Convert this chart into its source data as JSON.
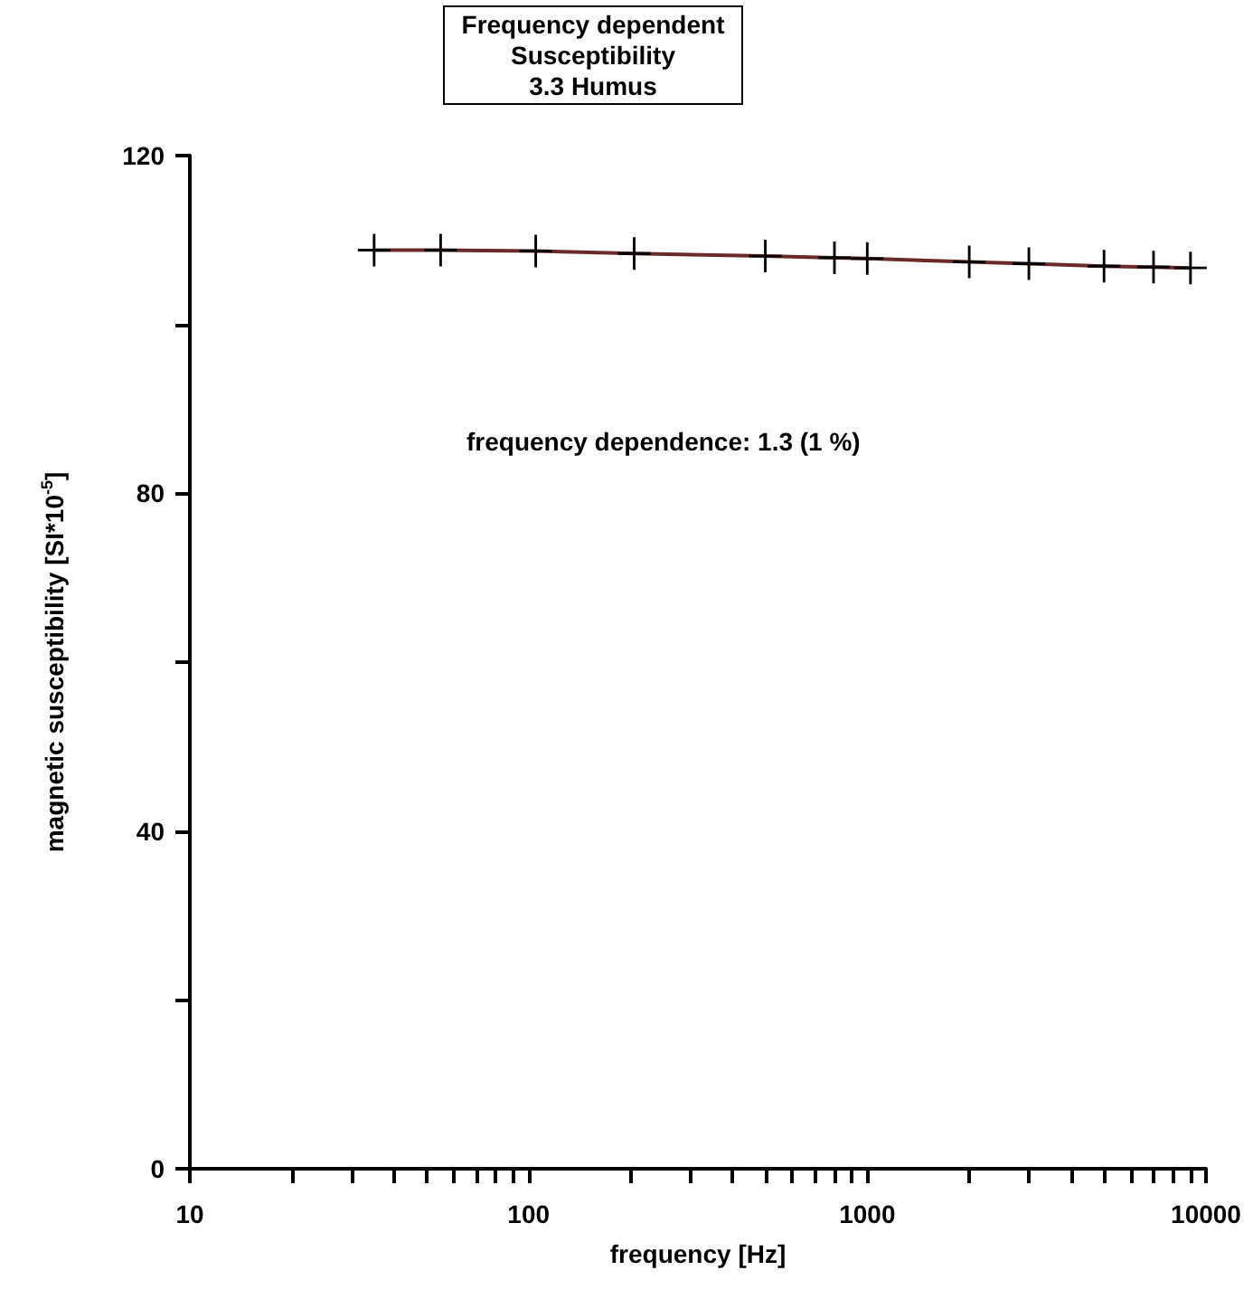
{
  "chart_data": {
    "type": "line",
    "title": "Frequency dependent\nSusceptibility\n3.3 Humus",
    "xlabel": "frequency [Hz]",
    "ylabel": "magnetic susceptibility [SI*10$^{-5}$]",
    "x": [
      35,
      55,
      105,
      205,
      500,
      800,
      1000,
      2000,
      3000,
      5000,
      7000,
      9000
    ],
    "series": [
      {
        "color": "#6b2a2a",
        "values": [
          108.8,
          108.8,
          108.7,
          108.4,
          108.1,
          107.9,
          107.8,
          107.4,
          107.2,
          106.9,
          106.8,
          106.7
        ]
      }
    ],
    "log": "x",
    "xlim": [
      10,
      10000
    ],
    "xticks": [
      10,
      {
        "value": 20,
        "label": null
      },
      {
        "value": 30,
        "label": null
      },
      {
        "value": 40,
        "label": null
      },
      {
        "value": 50,
        "label": null
      },
      {
        "value": 60,
        "label": null
      },
      {
        "value": 70,
        "label": null
      },
      {
        "value": 80,
        "label": null
      },
      {
        "value": 90,
        "label": null
      },
      100,
      {
        "value": 200,
        "label": null
      },
      {
        "value": 300,
        "label": null
      },
      {
        "value": 400,
        "label": null
      },
      {
        "value": 500,
        "label": null
      },
      {
        "value": 600,
        "label": null
      },
      {
        "value": 700,
        "label": null
      },
      {
        "value": 800,
        "label": null
      },
      {
        "value": 900,
        "label": null
      },
      1000,
      {
        "value": 2000,
        "label": null
      },
      {
        "value": 3000,
        "label": null
      },
      {
        "value": 4000,
        "label": null
      },
      {
        "value": 5000,
        "label": null
      },
      {
        "value": 6000,
        "label": null
      },
      {
        "value": 7000,
        "label": null
      },
      {
        "value": 8000,
        "label": null
      },
      {
        "value": 9000,
        "label": null
      },
      10000
    ],
    "ylim": [
      0,
      120
    ],
    "yticks": [
      0,
      {
        "value": 20,
        "label": null
      },
      40,
      {
        "value": 60,
        "label": null
      },
      80,
      {
        "value": 100,
        "label": null
      },
      120
    ],
    "annotations": [
      "frequency dependence: 1.3 (1 %)"
    ],
    "marker": "cross",
    "line_style": "solid",
    "grid": false
  }
}
